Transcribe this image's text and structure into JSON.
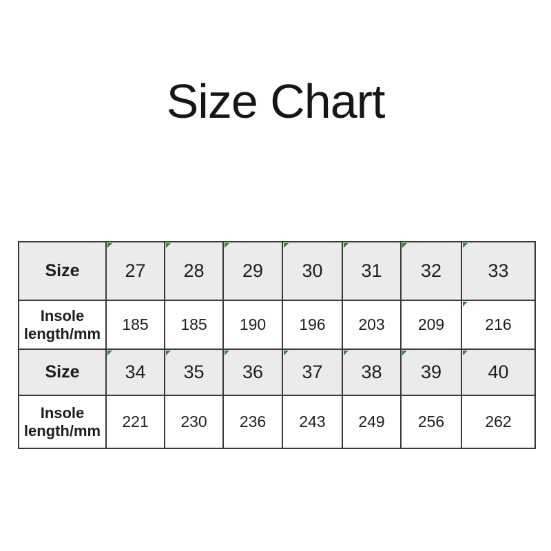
{
  "page": {
    "title": "Size Chart"
  },
  "colors": {
    "row_shaded_bg": "#ebebeb",
    "table_border": "#3a3a3a",
    "error_indicator_green": "#2e8b2e",
    "text": "#1d1d1d"
  },
  "table": {
    "rows": [
      {
        "label": "Size",
        "shaded": true,
        "values": [
          "27",
          "28",
          "29",
          "30",
          "31",
          "32",
          "33"
        ],
        "error_flags": [
          true,
          true,
          true,
          true,
          true,
          true,
          true
        ]
      },
      {
        "label": "Insole length/mm",
        "shaded": false,
        "values": [
          "185",
          "185",
          "190",
          "196",
          "203",
          "209",
          "216"
        ],
        "error_flags": [
          false,
          false,
          false,
          false,
          false,
          false,
          true
        ]
      },
      {
        "label": "Size",
        "shaded": true,
        "values": [
          "34",
          "35",
          "36",
          "37",
          "38",
          "39",
          "40"
        ],
        "error_flags": [
          true,
          true,
          true,
          true,
          true,
          true,
          true
        ]
      },
      {
        "label": "Insole length/mm",
        "shaded": false,
        "values": [
          "221",
          "230",
          "236",
          "243",
          "249",
          "256",
          "262"
        ],
        "error_flags": [
          false,
          false,
          false,
          false,
          false,
          false,
          false
        ]
      }
    ]
  },
  "chart_data": {
    "type": "table",
    "title": "Size Chart",
    "rows": [
      [
        "Size",
        27,
        28,
        29,
        30,
        31,
        32,
        33
      ],
      [
        "Insole length/mm",
        185,
        185,
        190,
        196,
        203,
        209,
        216
      ],
      [
        "Size",
        34,
        35,
        36,
        37,
        38,
        39,
        40
      ],
      [
        "Insole length/mm",
        221,
        230,
        236,
        243,
        249,
        256,
        262
      ]
    ],
    "size_to_insole_mm": {
      "27": 185,
      "28": 185,
      "29": 190,
      "30": 196,
      "31": 203,
      "32": 209,
      "33": 216,
      "34": 221,
      "35": 230,
      "36": 236,
      "37": 243,
      "38": 249,
      "39": 256,
      "40": 262
    }
  }
}
